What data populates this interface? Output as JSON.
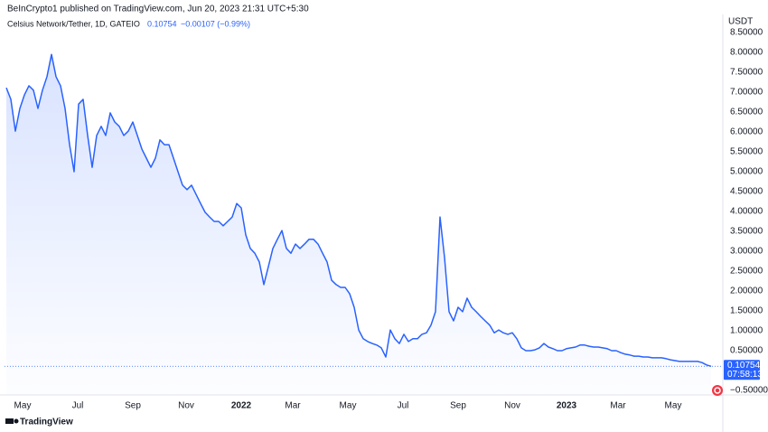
{
  "publisher": "BeInCrypto1 published on TradingView.com, Jun 20, 2023 21:31 UTC+5:30",
  "brand": "TradingView",
  "chart_data": {
    "type": "area",
    "title": "Celsius Network/Tether, 1D, GATEIO",
    "last_value_label": "0.10754",
    "change_label": "−0.00107 (−0.99%)",
    "y_unit": "USDT",
    "last_price": 0.10754,
    "countdown": "07:58:13",
    "color": "#2962ff",
    "grid": false,
    "values": [
      7.11,
      6.82,
      6.02,
      6.59,
      6.93,
      7.16,
      7.05,
      6.59,
      7.05,
      7.39,
      7.95,
      7.39,
      7.16,
      6.59,
      5.68,
      5.0,
      6.7,
      6.82,
      5.91,
      5.11,
      5.91,
      6.14,
      5.91,
      6.48,
      6.25,
      6.14,
      5.91,
      6.02,
      6.25,
      5.91,
      5.57,
      5.34,
      5.11,
      5.34,
      5.8,
      5.68,
      5.68,
      5.34,
      5.0,
      4.66,
      4.55,
      4.66,
      4.43,
      4.2,
      3.98,
      3.86,
      3.75,
      3.75,
      3.64,
      3.75,
      3.86,
      4.2,
      4.09,
      3.41,
      3.07,
      2.95,
      2.73,
      2.16,
      2.61,
      3.07,
      3.3,
      3.52,
      3.07,
      2.95,
      3.18,
      3.07,
      3.18,
      3.3,
      3.3,
      3.18,
      2.95,
      2.73,
      2.27,
      2.16,
      2.09,
      2.09,
      1.93,
      1.59,
      1.02,
      0.8,
      0.73,
      0.68,
      0.64,
      0.57,
      0.34,
      1.02,
      0.8,
      0.68,
      0.91,
      0.73,
      0.8,
      0.8,
      0.91,
      0.95,
      1.14,
      1.48,
      3.86,
      2.84,
      1.48,
      1.25,
      1.59,
      1.48,
      1.82,
      1.59,
      1.48,
      1.36,
      1.25,
      1.14,
      0.95,
      1.02,
      0.95,
      0.91,
      0.95,
      0.8,
      0.57,
      0.5,
      0.5,
      0.52,
      0.57,
      0.68,
      0.59,
      0.55,
      0.5,
      0.5,
      0.55,
      0.57,
      0.59,
      0.64,
      0.64,
      0.61,
      0.59,
      0.59,
      0.57,
      0.55,
      0.5,
      0.5,
      0.45,
      0.41,
      0.39,
      0.36,
      0.36,
      0.34,
      0.34,
      0.32,
      0.32,
      0.32,
      0.3,
      0.27,
      0.25,
      0.23,
      0.23,
      0.23,
      0.23,
      0.23,
      0.2,
      0.14,
      0.10754
    ],
    "xlim": [
      -0.4,
      158.6
    ],
    "xticks": [
      {
        "value": 3.6,
        "label": "May"
      },
      {
        "value": 15.8,
        "label": "Jul"
      },
      {
        "value": 28,
        "label": "Sep"
      },
      {
        "value": 39.8,
        "label": "Nov"
      },
      {
        "value": 52,
        "label": "2022"
      },
      {
        "value": 63.4,
        "label": "Mar"
      },
      {
        "value": 75.6,
        "label": "May"
      },
      {
        "value": 87.8,
        "label": "Jul"
      },
      {
        "value": 100,
        "label": "Sep"
      },
      {
        "value": 112,
        "label": "Nov"
      },
      {
        "value": 124,
        "label": "2023"
      },
      {
        "value": 135.4,
        "label": "Mar"
      },
      {
        "value": 147.6,
        "label": "May"
      }
    ],
    "ylim": [
      -0.614,
      8.636
    ],
    "yticks": [
      {
        "value": 8.5,
        "label": "8.50000"
      },
      {
        "value": 8,
        "label": "8.00000"
      },
      {
        "value": 7.5,
        "label": "7.50000"
      },
      {
        "value": 7,
        "label": "7.00000"
      },
      {
        "value": 6.5,
        "label": "6.50000"
      },
      {
        "value": 6,
        "label": "6.00000"
      },
      {
        "value": 5.5,
        "label": "5.50000"
      },
      {
        "value": 5,
        "label": "5.00000"
      },
      {
        "value": 4.5,
        "label": "4.50000"
      },
      {
        "value": 4,
        "label": "4.00000"
      },
      {
        "value": 3.5,
        "label": "3.50000"
      },
      {
        "value": 3,
        "label": "3.00000"
      },
      {
        "value": 2.5,
        "label": "2.50000"
      },
      {
        "value": 2,
        "label": "2.00000"
      },
      {
        "value": 1.5,
        "label": "1.50000"
      },
      {
        "value": 1,
        "label": "1.00000"
      },
      {
        "value": 0.5,
        "label": "0.50000"
      },
      {
        "value": -0.5,
        "label": "−0.50000"
      }
    ]
  }
}
